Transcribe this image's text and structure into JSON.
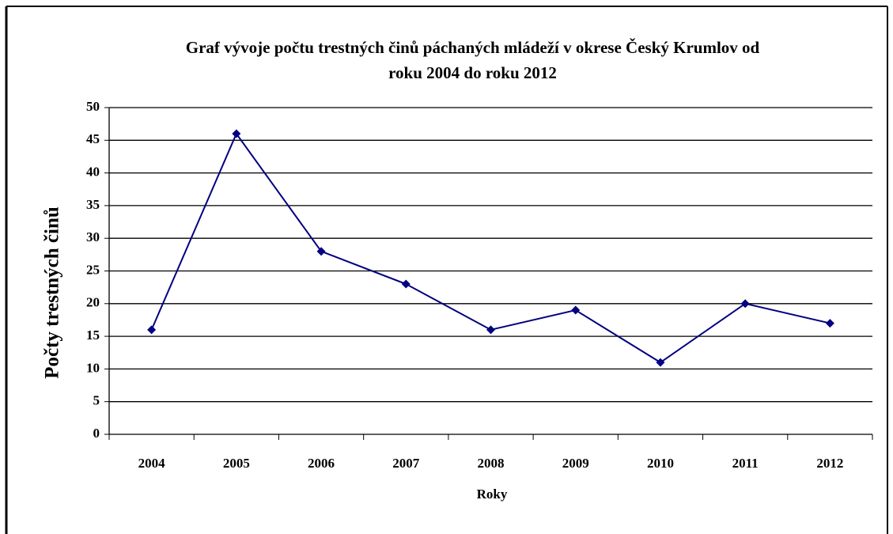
{
  "chart_data": {
    "type": "line",
    "title": "Graf vývoje počtu trestných činů páchaných mládeží v okrese Český Krumlov od roku 2004 do roku 2012",
    "xlabel": "Roky",
    "ylabel": "Počty trestných činů",
    "categories": [
      "2004",
      "2005",
      "2006",
      "2007",
      "2008",
      "2009",
      "2010",
      "2011",
      "2012"
    ],
    "series": [
      {
        "name": "Počty trestných činů",
        "color": "#000080",
        "values": [
          16,
          46,
          28,
          23,
          16,
          19,
          11,
          20,
          17
        ]
      }
    ],
    "ylim": [
      0,
      50
    ],
    "yticks": [
      0,
      5,
      10,
      15,
      20,
      25,
      30,
      35,
      40,
      45,
      50
    ],
    "grid": true,
    "legend": false
  }
}
